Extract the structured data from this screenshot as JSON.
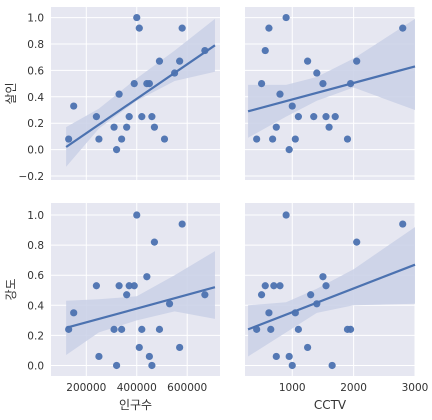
{
  "chart_data": {
    "type": "scatter",
    "style": {
      "background": "#e6e7f1",
      "grid": "#ffffff",
      "point_color": "#4c72b0",
      "line_color": "#4c72b0",
      "band_color": "#c9d0e6"
    },
    "grid": true,
    "panels": [
      {
        "id": "pop-murder",
        "xlabel": "",
        "ylabel": "살인",
        "xlim": [
          60000,
          730000
        ],
        "ylim": [
          -0.23,
          1.08
        ],
        "xticks": [],
        "yticks": [
          {
            "v": 1.0,
            "label": "1.0"
          },
          {
            "v": 0.8,
            "label": "0.8"
          },
          {
            "v": 0.6,
            "label": "0.6"
          },
          {
            "v": 0.4,
            "label": "0.4"
          },
          {
            "v": 0.2,
            "label": "0.2"
          },
          {
            "v": 0.0,
            "label": "0.0"
          },
          {
            "v": -0.2,
            "label": "−0.2"
          }
        ],
        "x": [
          130000,
          150000,
          240000,
          250000,
          310000,
          320000,
          330000,
          340000,
          360000,
          370000,
          390000,
          400000,
          410000,
          420000,
          440000,
          450000,
          460000,
          470000,
          490000,
          510000,
          550000,
          570000,
          580000,
          670000
        ],
        "y": [
          0.08,
          0.33,
          0.25,
          0.08,
          0.17,
          0.0,
          0.42,
          0.08,
          0.17,
          0.25,
          0.5,
          1.0,
          0.92,
          0.25,
          0.5,
          0.5,
          0.25,
          0.17,
          0.67,
          0.08,
          0.58,
          0.67,
          0.92,
          0.75
        ],
        "regression": {
          "x": [
            120000,
            710000
          ],
          "y": [
            0.02,
            0.79
          ]
        },
        "band": {
          "x": [
            120000,
            250000,
            400000,
            550000,
            710000
          ],
          "upper": [
            0.17,
            0.31,
            0.54,
            0.75,
            0.99
          ],
          "lower": [
            -0.13,
            0.16,
            0.37,
            0.52,
            0.59
          ]
        }
      },
      {
        "id": "cctv-murder",
        "xlabel": "",
        "ylabel": "",
        "xlim": [
          230,
          3000
        ],
        "ylim": [
          -0.23,
          1.08
        ],
        "xticks": [],
        "yticks": [],
        "x": [
          420,
          500,
          560,
          620,
          680,
          740,
          800,
          900,
          950,
          1000,
          1050,
          1100,
          1250,
          1350,
          1400,
          1500,
          1550,
          1600,
          1700,
          1900,
          1950,
          2050,
          2800
        ],
        "y": [
          0.08,
          0.5,
          0.75,
          0.92,
          0.08,
          0.17,
          0.42,
          1.0,
          0.0,
          0.33,
          0.08,
          0.25,
          0.67,
          0.25,
          0.58,
          0.5,
          0.25,
          0.17,
          0.25,
          0.08,
          0.5,
          0.67,
          0.92
        ],
        "regression": {
          "x": [
            280,
            3000
          ],
          "y": [
            0.29,
            0.63
          ]
        },
        "band": {
          "x": [
            280,
            900,
            1400,
            2000,
            3000
          ],
          "upper": [
            0.49,
            0.49,
            0.55,
            0.69,
            0.99
          ],
          "lower": [
            0.09,
            0.25,
            0.37,
            0.47,
            0.3
          ]
        }
      },
      {
        "id": "pop-robbery",
        "xlabel": "인구수",
        "ylabel": "강도",
        "xlim": [
          60000,
          730000
        ],
        "ylim": [
          -0.07,
          1.08
        ],
        "xticks": [
          {
            "v": 200000,
            "label": "200000"
          },
          {
            "v": 400000,
            "label": "400000"
          },
          {
            "v": 600000,
            "label": "600000"
          }
        ],
        "yticks": [
          {
            "v": 1.0,
            "label": "1.0"
          },
          {
            "v": 0.8,
            "label": "0.8"
          },
          {
            "v": 0.6,
            "label": "0.6"
          },
          {
            "v": 0.4,
            "label": "0.4"
          },
          {
            "v": 0.2,
            "label": "0.2"
          },
          {
            "v": 0.0,
            "label": "0.0"
          }
        ],
        "x": [
          130000,
          150000,
          240000,
          250000,
          310000,
          320000,
          330000,
          340000,
          360000,
          370000,
          390000,
          400000,
          410000,
          420000,
          440000,
          450000,
          460000,
          470000,
          490000,
          530000,
          570000,
          580000,
          670000
        ],
        "y": [
          0.24,
          0.35,
          0.53,
          0.06,
          0.24,
          0.0,
          0.53,
          0.24,
          0.47,
          0.53,
          0.53,
          1.0,
          0.12,
          0.24,
          0.59,
          0.06,
          0.0,
          0.82,
          0.24,
          0.41,
          0.12,
          0.94,
          0.47
        ],
        "regression": {
          "x": [
            120000,
            710000
          ],
          "y": [
            0.25,
            0.52
          ]
        },
        "band": {
          "x": [
            120000,
            250000,
            400000,
            550000,
            710000
          ],
          "upper": [
            0.43,
            0.44,
            0.46,
            0.6,
            0.76
          ],
          "lower": [
            0.07,
            0.22,
            0.3,
            0.36,
            0.31
          ]
        }
      },
      {
        "id": "cctv-robbery",
        "xlabel": "CCTV",
        "ylabel": "",
        "xlim": [
          230,
          3000
        ],
        "ylim": [
          -0.07,
          1.08
        ],
        "xticks": [
          {
            "v": 1000,
            "label": "1000"
          },
          {
            "v": 2000,
            "label": "2000"
          },
          {
            "v": 3000,
            "label": "3000"
          }
        ],
        "yticks": [],
        "x": [
          420,
          500,
          560,
          620,
          650,
          700,
          740,
          800,
          900,
          950,
          1000,
          1050,
          1100,
          1250,
          1300,
          1400,
          1500,
          1550,
          1650,
          1900,
          1950,
          2050,
          2800
        ],
        "y": [
          0.24,
          0.47,
          0.53,
          0.35,
          0.24,
          0.53,
          0.06,
          0.53,
          1.0,
          0.06,
          0.0,
          0.35,
          0.24,
          0.12,
          0.47,
          0.41,
          0.59,
          0.53,
          0.0,
          0.24,
          0.24,
          0.82,
          0.94
        ],
        "regression": {
          "x": [
            280,
            3000
          ],
          "y": [
            0.24,
            0.67
          ]
        },
        "band": {
          "x": [
            280,
            900,
            1400,
            2000,
            3000
          ],
          "upper": [
            0.4,
            0.42,
            0.51,
            0.64,
            0.92
          ],
          "lower": [
            0.06,
            0.22,
            0.35,
            0.4,
            0.41
          ]
        }
      }
    ]
  }
}
